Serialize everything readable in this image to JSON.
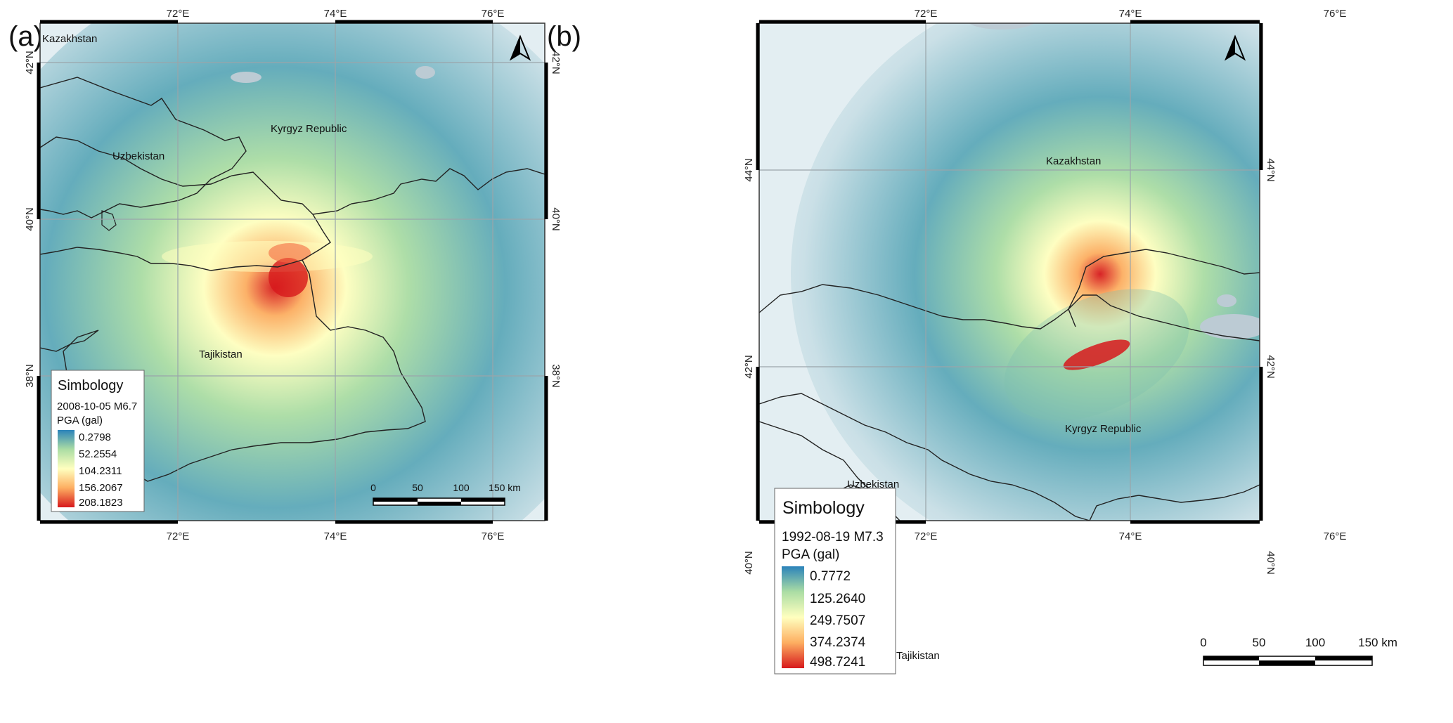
{
  "panels": [
    {
      "label": "(a)",
      "lon_ticks": [
        "72°E",
        "74°E",
        "76°E"
      ],
      "lat_ticks": [
        "42°N",
        "40°N",
        "38°N"
      ],
      "countries": [
        "Kazakhstan",
        "Kyrgyz Republic",
        "Uzbekistan",
        "Tajikistan"
      ],
      "legend": {
        "title": "Simbology",
        "event": "2008-10-05 M6.7",
        "unit": "PGA (gal)",
        "breaks": [
          "0.2798",
          "52.2554",
          "104.2311",
          "156.2067",
          "208.1823"
        ]
      },
      "scale_bar": [
        "0",
        "50",
        "100",
        "150 km"
      ]
    },
    {
      "label": "(b)",
      "lon_ticks": [
        "72°E",
        "74°E",
        "76°E"
      ],
      "lat_ticks": [
        "44°N",
        "42°N",
        "40°N"
      ],
      "countries": [
        "Kazakhstan",
        "Kyrgyz Republic",
        "Uzbekistan",
        "Tajikistan"
      ],
      "legend": {
        "title": "Simbology",
        "event": "1992-08-19 M7.3",
        "unit": "PGA (gal)",
        "breaks": [
          "0.7772",
          "125.2640",
          "249.7507",
          "374.2374",
          "498.7241"
        ]
      },
      "scale_bar": [
        "0",
        "50",
        "100",
        "150 km"
      ]
    }
  ],
  "colors": {
    "ramp": [
      "#2b83ba",
      "#abdda4",
      "#ffffbf",
      "#fdae61",
      "#d7191c"
    ],
    "background": "#e3eef2",
    "water": "#bccbd4"
  }
}
